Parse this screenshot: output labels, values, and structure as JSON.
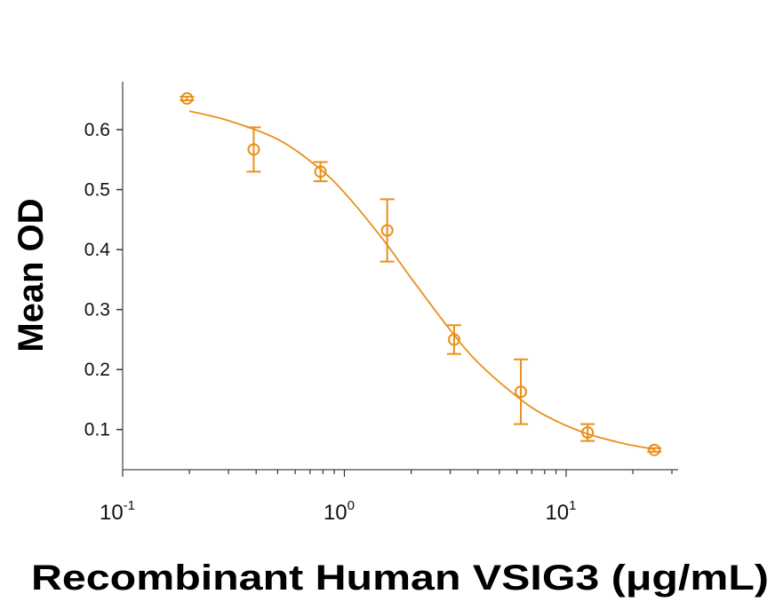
{
  "chart_data": {
    "type": "scatter",
    "title": "",
    "xlabel": "Recombinant Human VSIG3 (μg/mL)",
    "ylabel": "Mean OD",
    "xscale": "log",
    "xlim": [
      0.1,
      32
    ],
    "ylim": [
      0.033,
      0.68
    ],
    "grid": false,
    "color": "#E8901A",
    "x_ticks": [
      {
        "value": 0.1,
        "base": "10",
        "exp": "-1"
      },
      {
        "value": 1,
        "base": "10",
        "exp": "0"
      },
      {
        "value": 10,
        "base": "10",
        "exp": "1"
      }
    ],
    "y_ticks": [
      {
        "value": 0.1,
        "label": "0.1"
      },
      {
        "value": 0.2,
        "label": "0.2"
      },
      {
        "value": 0.3,
        "label": "0.3"
      },
      {
        "value": 0.4,
        "label": "0.4"
      },
      {
        "value": 0.5,
        "label": "0.5"
      },
      {
        "value": 0.6,
        "label": "0.6"
      }
    ],
    "series": [
      {
        "marker": "open-circle",
        "x": [
          0.195,
          0.39,
          0.78,
          1.56,
          3.125,
          6.25,
          12.5,
          25
        ],
        "y": [
          0.652,
          0.567,
          0.53,
          0.432,
          0.25,
          0.163,
          0.095,
          0.066
        ],
        "error": [
          0.003,
          0.037,
          0.016,
          0.052,
          0.024,
          0.054,
          0.014,
          0.003
        ]
      }
    ],
    "fit_curve": {
      "x": [
        0.2,
        0.3,
        0.5,
        0.75,
        1,
        1.5,
        2,
        3,
        4,
        6,
        8,
        12,
        18,
        25
      ],
      "y": [
        0.631,
        0.615,
        0.584,
        0.539,
        0.495,
        0.416,
        0.3525,
        0.266,
        0.212,
        0.155,
        0.124,
        0.095,
        0.077,
        0.067
      ]
    }
  }
}
